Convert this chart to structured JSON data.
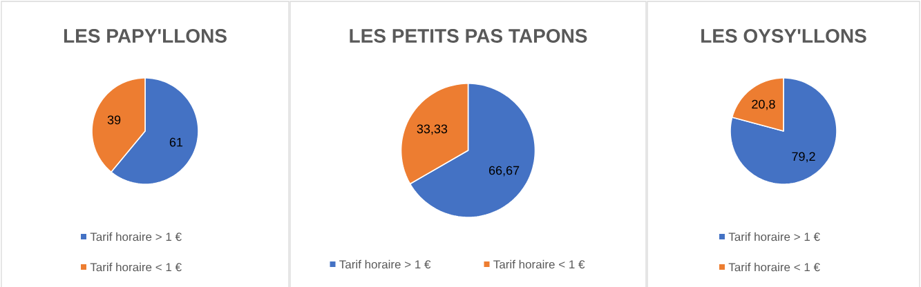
{
  "chart_data": [
    {
      "type": "pie",
      "title": "LES PAPY'LLONS",
      "categories": [
        "Tarif horaire > 1 €",
        "Tarif horaire < 1 €"
      ],
      "values": [
        61,
        39
      ],
      "value_labels": [
        "61",
        "39"
      ],
      "colors": [
        "#4472c4",
        "#ed7d31"
      ],
      "legend": "bottom"
    },
    {
      "type": "pie",
      "title": "LES PETITS PAS TAPONS",
      "categories": [
        "Tarif horaire > 1 €",
        "Tarif horaire < 1 €"
      ],
      "values": [
        66.67,
        33.33
      ],
      "value_labels": [
        "66,67",
        "33,33"
      ],
      "colors": [
        "#4472c4",
        "#ed7d31"
      ],
      "legend": "bottom"
    },
    {
      "type": "pie",
      "title": "LES OYSY'LLONS",
      "categories": [
        "Tarif horaire > 1 €",
        "Tarif horaire < 1 €"
      ],
      "values": [
        79.2,
        20.8
      ],
      "value_labels": [
        "79,2",
        "20,8"
      ],
      "colors": [
        "#4472c4",
        "#ed7d31"
      ],
      "legend": "bottom"
    }
  ]
}
